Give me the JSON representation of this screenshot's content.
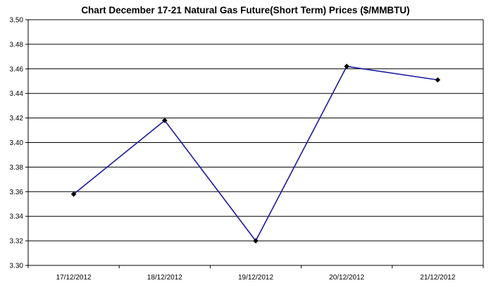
{
  "chart_data": {
    "type": "line",
    "title": "Chart  December 17-21 Natural Gas Future(Short Term)  Prices ($/MMBTU)",
    "xlabel": "",
    "ylabel": "",
    "categories": [
      "17/12/2012",
      "18/12/2012",
      "19/12/2012",
      "20/12/2012",
      "21/12/2012"
    ],
    "series": [
      {
        "values": [
          3.358,
          3.418,
          3.32,
          3.462,
          3.451
        ]
      }
    ],
    "ylim": [
      3.3,
      3.5
    ],
    "yticks": [
      "3.30",
      "3.32",
      "3.34",
      "3.36",
      "3.38",
      "3.40",
      "3.42",
      "3.44",
      "3.46",
      "3.48",
      "3.50"
    ],
    "grid": true,
    "legend": "none",
    "colors": {
      "line": "#1a1aa0",
      "marker": "#000000",
      "grid": "#000000"
    }
  }
}
